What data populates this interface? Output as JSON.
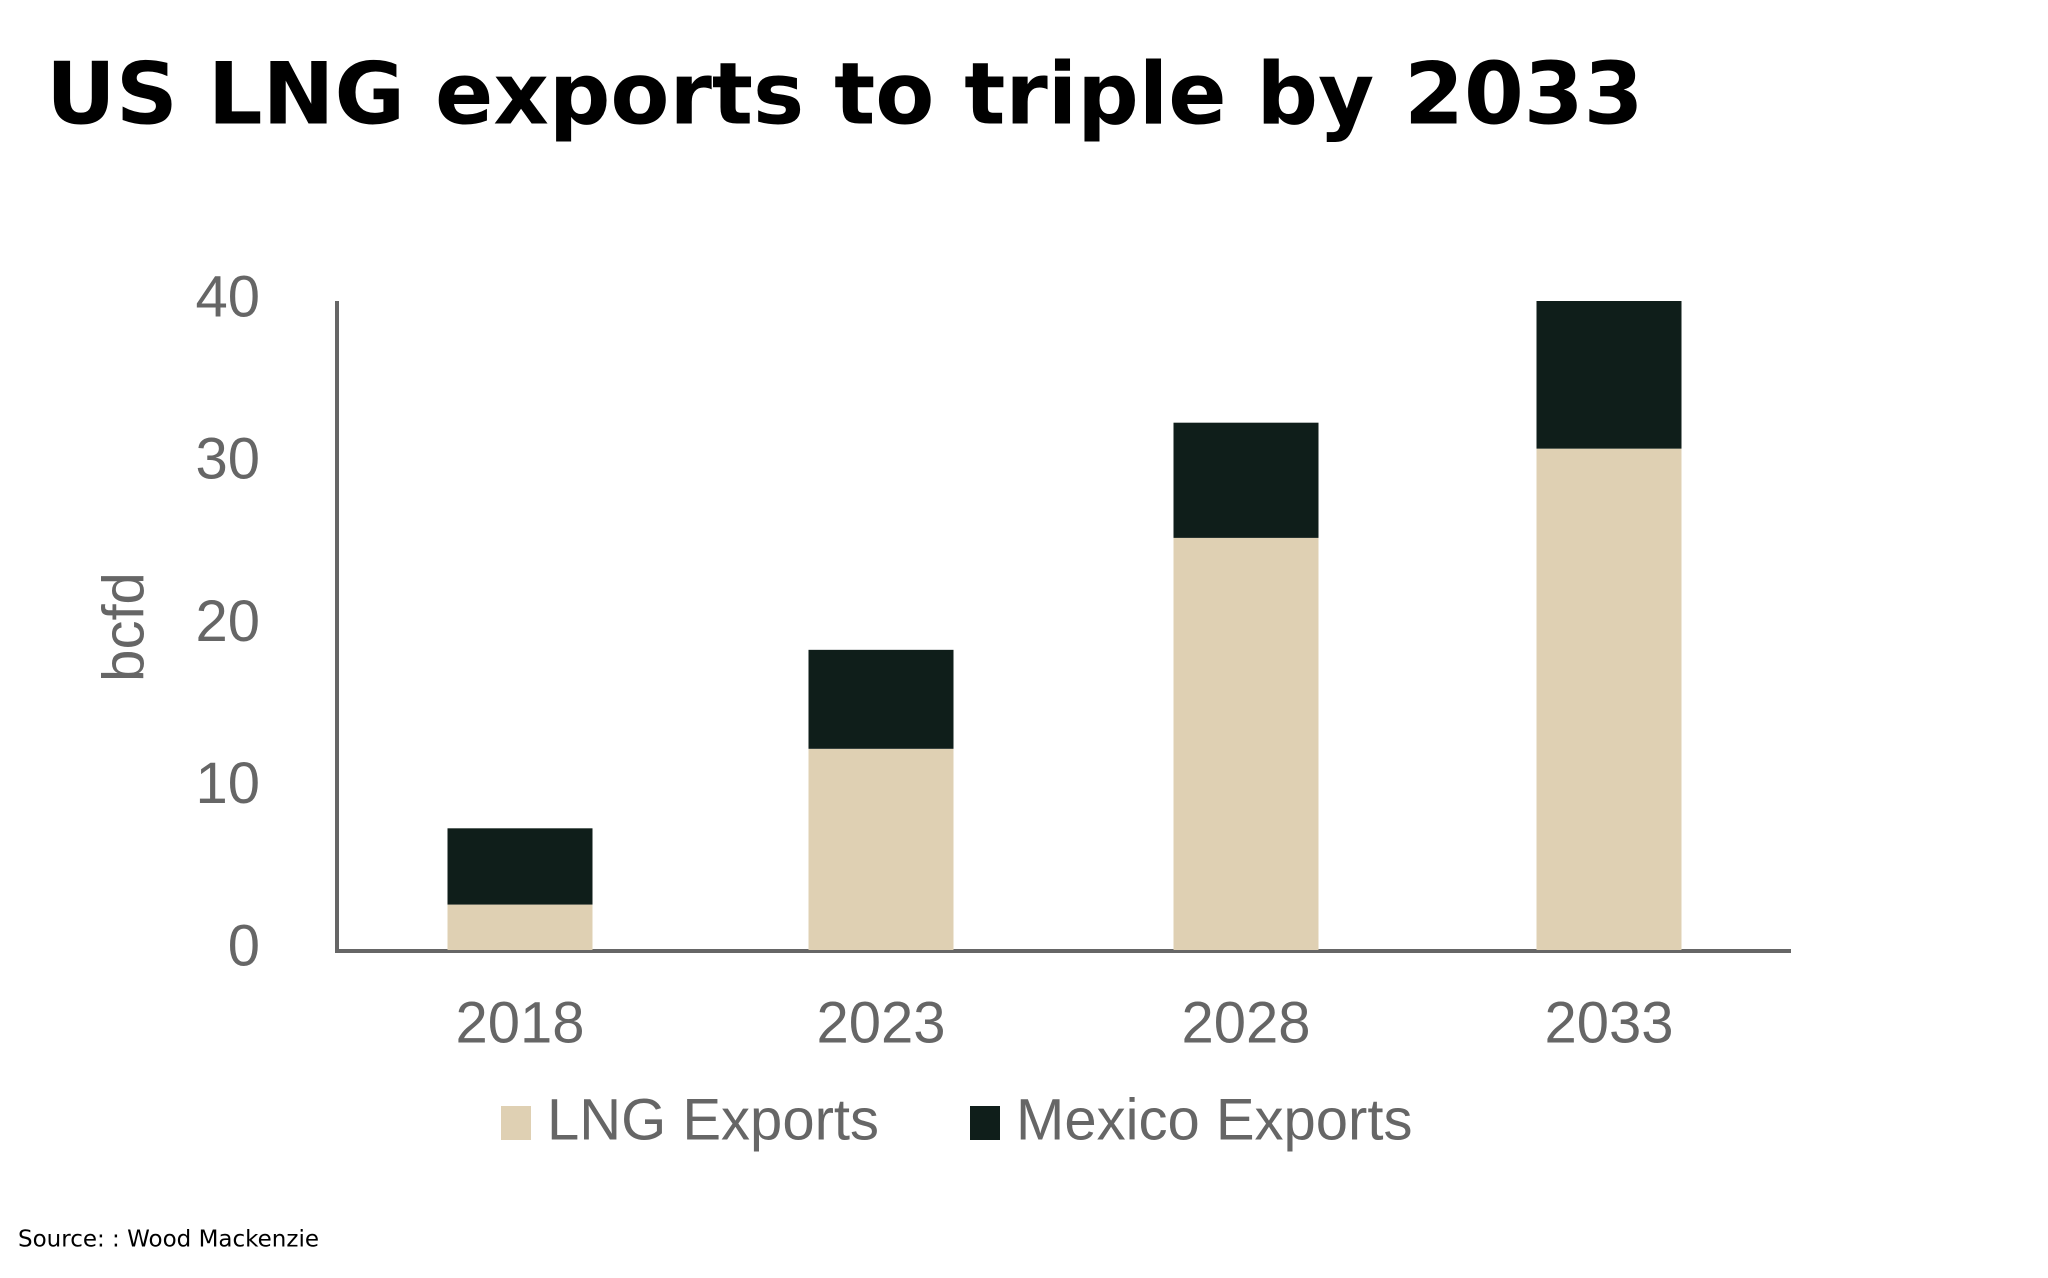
{
  "chart_data": {
    "type": "stacked_bar",
    "title": "US LNG exports to triple by 2033",
    "y_label": "bcfd",
    "categories": [
      "2018",
      "2023",
      "2028",
      "2033"
    ],
    "series": [
      {
        "name": "LNG Exports",
        "color": "#dfd0b3",
        "values": [
          2.8,
          12.4,
          25.4,
          30.9
        ]
      },
      {
        "name": "Mexico Exports",
        "color": "#0f1e1a",
        "values": [
          4.7,
          6.1,
          7.1,
          9.1
        ]
      }
    ],
    "ylim": [
      0,
      40
    ],
    "yticks": [
      0,
      10,
      20,
      30,
      40
    ],
    "grid": false,
    "legend": "bottom",
    "source": "Source: : Wood Mackenzie"
  }
}
